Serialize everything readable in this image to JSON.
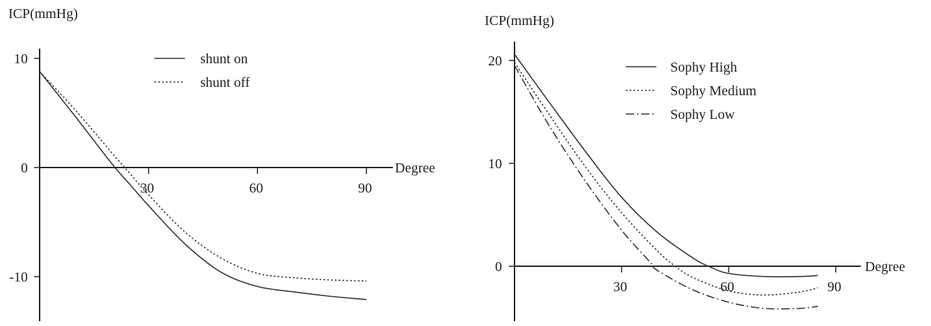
{
  "chart_data": [
    {
      "type": "line",
      "title": "",
      "ylabel": "ICP(mmHg)",
      "xlabel": "Degree",
      "xlim": [
        0,
        95
      ],
      "ylim": [
        -14,
        13
      ],
      "xticks": [
        30,
        60,
        90
      ],
      "xtick_labels": [
        "30",
        "60",
        "90"
      ],
      "yticks": [
        10,
        0,
        -10
      ],
      "ytick_labels": [
        "10",
        "0",
        "-10"
      ],
      "grid": false,
      "legend": "top-center",
      "series": [
        {
          "name": "shunt on",
          "style": "solid",
          "x": [
            0,
            10,
            20,
            25,
            30,
            40,
            50,
            60,
            70,
            80,
            90
          ],
          "y": [
            8.8,
            4.6,
            0.3,
            -1.6,
            -3.5,
            -7.0,
            -9.6,
            -10.9,
            -11.4,
            -11.8,
            -12.1
          ]
        },
        {
          "name": "shunt off",
          "style": "dotted",
          "x": [
            0,
            10,
            20,
            25,
            30,
            40,
            50,
            60,
            70,
            80,
            90
          ],
          "y": [
            8.8,
            5.2,
            1.3,
            -0.6,
            -2.5,
            -5.9,
            -8.3,
            -9.7,
            -10.1,
            -10.3,
            -10.4
          ]
        }
      ]
    },
    {
      "type": "line",
      "title": "",
      "ylabel": "ICP(mmHg)",
      "xlabel": "Degree",
      "xlim": [
        0,
        97
      ],
      "ylim": [
        -5.5,
        22
      ],
      "xticks": [
        30,
        60,
        90
      ],
      "xtick_labels": [
        "30",
        "60",
        "90"
      ],
      "yticks": [
        20,
        10,
        0
      ],
      "ytick_labels": [
        "20",
        "10",
        "0"
      ],
      "grid": false,
      "legend": "top-center",
      "series": [
        {
          "name": "Sophy High",
          "style": "solid",
          "x": [
            0,
            10,
            20,
            30,
            40,
            50,
            55,
            60,
            70,
            80,
            85
          ],
          "y": [
            20.6,
            15.8,
            11.1,
            6.7,
            3.3,
            0.8,
            -0.1,
            -0.7,
            -1.0,
            -1.0,
            -0.9
          ]
        },
        {
          "name": "Sophy Medium",
          "style": "dotted",
          "x": [
            0,
            10,
            20,
            30,
            40,
            45,
            50,
            60,
            70,
            80,
            85
          ],
          "y": [
            19.8,
            14.6,
            9.6,
            5.2,
            1.5,
            0.0,
            -1.1,
            -2.4,
            -2.8,
            -2.5,
            -2.1
          ]
        },
        {
          "name": "Sophy Low",
          "style": "dashdot",
          "x": [
            0,
            10,
            20,
            30,
            38,
            40,
            50,
            60,
            70,
            80,
            85
          ],
          "y": [
            19.5,
            13.5,
            8.2,
            3.5,
            0.4,
            -0.4,
            -2.3,
            -3.5,
            -4.1,
            -4.1,
            -3.9
          ]
        }
      ]
    }
  ]
}
